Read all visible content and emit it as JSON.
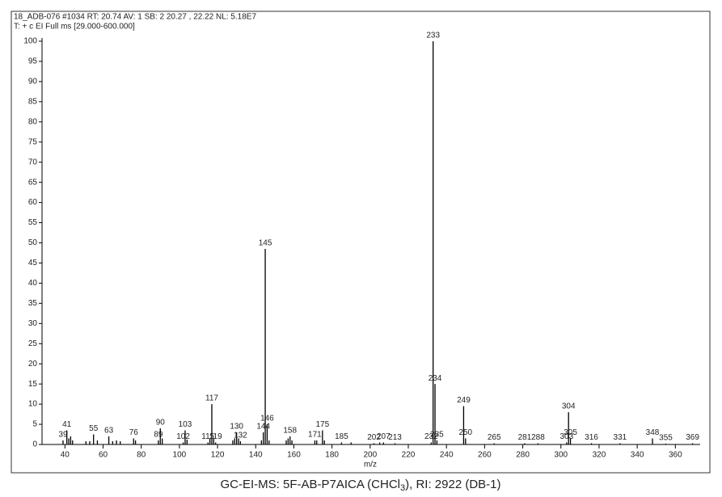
{
  "header": [
    "18_ADB-076 #1034  RT: 20.74  AV: 1  SB: 2 20.27 , 22.22  NL: 5.18E7",
    "T: + c EI Full ms [29.000-600.000]"
  ],
  "caption": [
    "GC-EI-MS: 5F-AB-P7AICA (CHCl",
    "3",
    "), RI: 2922 (DB-1)"
  ],
  "chart_data": {
    "type": "bar",
    "x_label": "m/z",
    "color": "#000000",
    "xlim": [
      28,
      373
    ],
    "ylim": [
      0,
      100
    ],
    "xticks": [
      40,
      60,
      80,
      100,
      120,
      140,
      160,
      180,
      200,
      220,
      240,
      260,
      280,
      300,
      320,
      340,
      360
    ],
    "yticks": [
      0,
      5,
      10,
      15,
      20,
      25,
      30,
      35,
      40,
      45,
      50,
      55,
      60,
      65,
      70,
      75,
      80,
      85,
      90,
      95,
      100
    ],
    "peaks": {
      "x": [
        39,
        41,
        55,
        63,
        76,
        89,
        90,
        102,
        103,
        115,
        117,
        119,
        130,
        132,
        144,
        145,
        146,
        158,
        171,
        175,
        185,
        202,
        207,
        213,
        232,
        233,
        234,
        235,
        249,
        250,
        265,
        281,
        288,
        303,
        304,
        305,
        316,
        331,
        348,
        355,
        369
      ],
      "values": [
        1,
        3.5,
        2.5,
        2,
        1.5,
        1,
        4,
        0.5,
        3.5,
        0.5,
        10,
        0.5,
        3,
        0.8,
        3,
        48.5,
        5,
        2,
        1,
        3.5,
        0.5,
        0.3,
        0.5,
        0.3,
        0.5,
        100,
        15,
        1,
        9.5,
        1.5,
        0.3,
        0.3,
        0.3,
        0.5,
        8,
        1.5,
        0.3,
        0.3,
        1.5,
        0.2,
        0.3
      ]
    },
    "minor_peaks": {
      "x": [
        42,
        43,
        44,
        51,
        53,
        57,
        65,
        67,
        69,
        77,
        91,
        104,
        116,
        118,
        128,
        129,
        131,
        143,
        147,
        156,
        157,
        159,
        172,
        176,
        190,
        205
      ],
      "values": [
        1.5,
        2,
        1,
        0.8,
        0.8,
        1,
        0.8,
        1,
        0.8,
        1,
        1.5,
        1.2,
        1.5,
        1.5,
        1,
        1.5,
        1.5,
        1,
        1,
        1,
        1.5,
        1,
        1,
        1,
        0.5,
        0.5
      ]
    }
  }
}
